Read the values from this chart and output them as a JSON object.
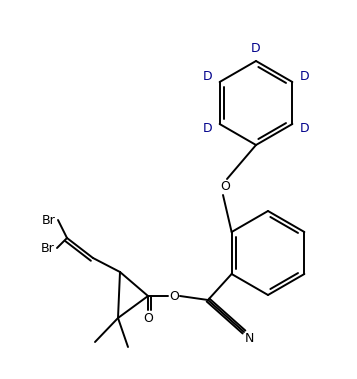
{
  "bg_color": "#ffffff",
  "line_color": "#000000",
  "d_color": "#00008B",
  "lw": 1.4,
  "figsize": [
    3.57,
    3.79
  ],
  "dpi": 100,
  "xlim": [
    0,
    357
  ],
  "ylim": [
    0,
    379
  ]
}
